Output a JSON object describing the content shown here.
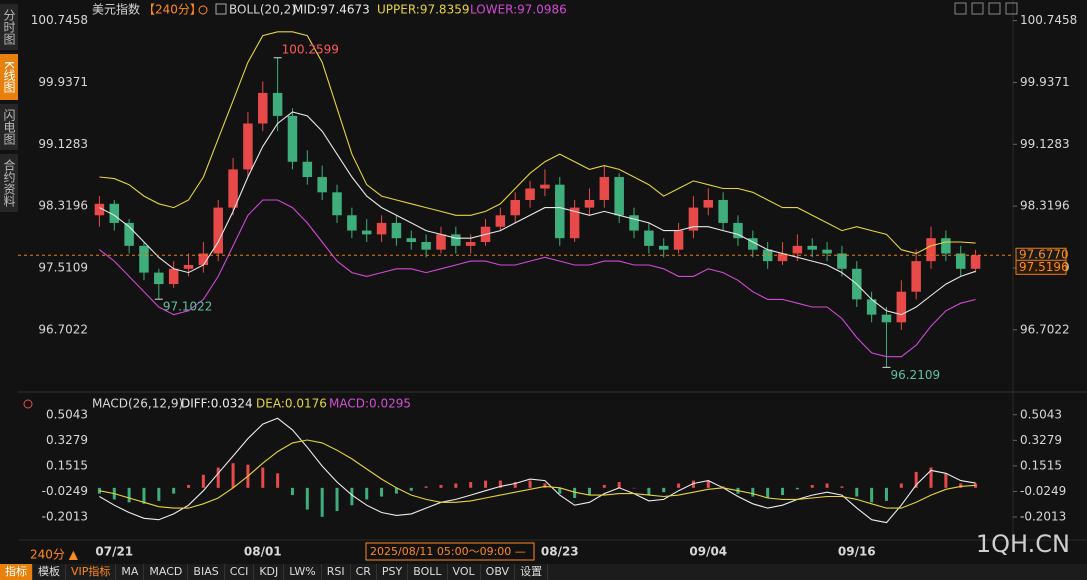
{
  "chart_data": [
    {
      "type": "candlestick",
      "title": "美元指数",
      "period": "【240分】",
      "indicator": "BOLL(20,2)",
      "categories": [
        null,
        "07/21",
        null,
        null,
        null,
        null,
        null,
        null,
        null,
        null,
        null,
        "08/01",
        null,
        null,
        null,
        null,
        null,
        null,
        null,
        null,
        null,
        null,
        null,
        null,
        null,
        null,
        null,
        null,
        null,
        null,
        null,
        "08/23",
        null,
        null,
        null,
        null,
        null,
        null,
        null,
        null,
        null,
        "09/04",
        null,
        null,
        null,
        null,
        null,
        null,
        null,
        null,
        null,
        "09/16",
        null,
        null,
        null,
        null,
        null,
        null,
        null,
        null
      ],
      "open": [
        98.2,
        98.35,
        98.1,
        97.8,
        97.45,
        97.3,
        97.5,
        97.55,
        97.7,
        98.3,
        98.8,
        99.4,
        99.8,
        99.5,
        98.9,
        98.7,
        98.5,
        98.2,
        98.0,
        97.95,
        98.1,
        97.9,
        97.85,
        97.75,
        97.95,
        97.8,
        97.85,
        98.05,
        98.2,
        98.4,
        98.55,
        98.6,
        97.9,
        98.3,
        98.4,
        98.7,
        98.2,
        98.0,
        97.8,
        97.75,
        98.0,
        98.3,
        98.4,
        98.1,
        97.9,
        97.75,
        97.6,
        97.7,
        97.8,
        97.75,
        97.7,
        97.5,
        97.1,
        96.9,
        96.8,
        97.2,
        97.6,
        97.9,
        97.7,
        97.5
      ],
      "high": [
        98.45,
        98.4,
        98.15,
        97.85,
        97.5,
        97.6,
        97.7,
        97.85,
        98.4,
        98.95,
        99.55,
        99.95,
        100.2599,
        99.6,
        99.05,
        98.85,
        98.6,
        98.3,
        98.15,
        98.2,
        98.2,
        98.0,
        97.95,
        98.05,
        98.05,
        97.95,
        98.15,
        98.3,
        98.5,
        98.65,
        98.8,
        98.7,
        98.4,
        98.55,
        98.85,
        98.75,
        98.3,
        98.1,
        97.9,
        98.1,
        98.45,
        98.55,
        98.5,
        98.2,
        98.0,
        97.85,
        97.85,
        97.95,
        97.9,
        97.85,
        97.8,
        97.6,
        97.2,
        97.0,
        97.35,
        97.75,
        98.05,
        98.0,
        97.8,
        97.75
      ],
      "low": [
        98.05,
        98.0,
        97.7,
        97.35,
        97.1022,
        97.25,
        97.4,
        97.45,
        97.6,
        98.2,
        98.7,
        99.3,
        99.3,
        98.8,
        98.6,
        98.4,
        98.1,
        97.9,
        97.85,
        97.85,
        97.8,
        97.75,
        97.65,
        97.7,
        97.7,
        97.7,
        97.8,
        98.0,
        98.1,
        98.3,
        98.45,
        97.8,
        97.85,
        98.2,
        98.3,
        98.1,
        97.9,
        97.7,
        97.65,
        97.7,
        97.9,
        98.2,
        98.0,
        97.8,
        97.65,
        97.5,
        97.55,
        97.6,
        97.65,
        97.6,
        97.4,
        97.0,
        96.8,
        96.2109,
        96.7,
        97.1,
        97.5,
        97.6,
        97.4,
        97.45
      ],
      "close": [
        98.35,
        98.1,
        97.8,
        97.45,
        97.3,
        97.5,
        97.55,
        97.7,
        98.3,
        98.8,
        99.4,
        99.8,
        99.5,
        98.9,
        98.7,
        98.5,
        98.2,
        98.0,
        97.95,
        98.1,
        97.9,
        97.85,
        97.75,
        97.95,
        97.8,
        97.85,
        98.05,
        98.2,
        98.4,
        98.55,
        98.6,
        97.9,
        98.3,
        98.4,
        98.7,
        98.2,
        98.0,
        97.8,
        97.75,
        98.0,
        98.3,
        98.4,
        98.1,
        97.9,
        97.75,
        97.6,
        97.7,
        97.8,
        97.75,
        97.7,
        97.5,
        97.1,
        96.9,
        96.8,
        97.2,
        97.6,
        97.9,
        97.7,
        97.5,
        97.677
      ],
      "up_color": "#e84a4a",
      "down_color": "#3fae7c",
      "series": [
        {
          "name": "MID:97.4673",
          "color": "#e8e8e8",
          "values": [
            98.3,
            98.2,
            98.05,
            97.85,
            97.65,
            97.5,
            97.45,
            97.55,
            97.85,
            98.25,
            98.7,
            99.1,
            99.4,
            99.55,
            99.5,
            99.3,
            99.0,
            98.7,
            98.45,
            98.3,
            98.2,
            98.1,
            98.0,
            97.95,
            97.9,
            97.9,
            97.95,
            98.0,
            98.1,
            98.2,
            98.3,
            98.3,
            98.25,
            98.2,
            98.25,
            98.2,
            98.15,
            98.1,
            98.0,
            98.0,
            98.05,
            98.05,
            98.0,
            97.95,
            97.85,
            97.75,
            97.7,
            97.65,
            97.6,
            97.55,
            97.45,
            97.3,
            97.1,
            96.95,
            96.9,
            97.0,
            97.15,
            97.3,
            97.4,
            97.4673
          ]
        },
        {
          "name": "UPPER:97.8359",
          "color": "#e6d43c",
          "values": [
            98.7,
            98.68,
            98.6,
            98.45,
            98.35,
            98.3,
            98.4,
            98.7,
            99.2,
            99.7,
            100.2,
            100.55,
            100.6,
            100.6,
            100.55,
            100.2,
            99.6,
            99.0,
            98.6,
            98.45,
            98.4,
            98.35,
            98.3,
            98.25,
            98.2,
            98.2,
            98.25,
            98.35,
            98.55,
            98.75,
            98.9,
            99.0,
            98.9,
            98.8,
            98.85,
            98.8,
            98.7,
            98.6,
            98.45,
            98.55,
            98.65,
            98.6,
            98.55,
            98.55,
            98.5,
            98.4,
            98.3,
            98.3,
            98.2,
            98.1,
            98.0,
            98.05,
            98.0,
            97.95,
            97.75,
            97.7,
            97.8,
            97.85,
            97.85,
            97.8359
          ]
        },
        {
          "name": "LOWER:97.0986",
          "color": "#d04ad4",
          "values": [
            97.75,
            97.6,
            97.4,
            97.2,
            97.0,
            96.9,
            96.95,
            97.1,
            97.4,
            97.8,
            98.2,
            98.4,
            98.4,
            98.3,
            98.1,
            97.85,
            97.6,
            97.45,
            97.4,
            97.45,
            97.5,
            97.5,
            97.45,
            97.5,
            97.55,
            97.6,
            97.6,
            97.55,
            97.55,
            97.6,
            97.65,
            97.6,
            97.55,
            97.55,
            97.6,
            97.6,
            97.55,
            97.55,
            97.5,
            97.4,
            97.4,
            97.5,
            97.45,
            97.35,
            97.2,
            97.1,
            97.1,
            97.05,
            97.0,
            97.0,
            96.85,
            96.6,
            96.4,
            96.35,
            96.35,
            96.5,
            96.75,
            96.95,
            97.05,
            97.0986
          ]
        }
      ],
      "ylim": [
        95.98,
        100.95
      ],
      "yticks": [
        {
          "value": 96.7022,
          "label": "96.7022"
        },
        {
          "value": 97.5109,
          "label": "97.5109"
        },
        {
          "value": 98.3196,
          "label": "98.3196"
        },
        {
          "value": 99.1283,
          "label": "99.1283"
        },
        {
          "value": 99.9371,
          "label": "99.9371"
        },
        {
          "value": 100.7458,
          "label": "100.7458"
        }
      ],
      "price_tags": [
        {
          "value": 97.677,
          "label": "97.6770"
        },
        {
          "value": 97.5196,
          "label": "97.5196"
        }
      ],
      "annotations": [
        {
          "value": 100.2599,
          "label": "100.2599",
          "color": "#ff5a5a"
        },
        {
          "value": 97.1022,
          "label": "97.1022",
          "color": "#5fc0a0"
        },
        {
          "value": 96.2109,
          "label": "96.2109",
          "color": "#5fc0a0"
        }
      ]
    },
    {
      "type": "macd",
      "title": "MACD(26,12,9)",
      "series": [
        {
          "name": "DIFF:0.0324",
          "color": "#ececec",
          "values": [
            -0.06,
            -0.12,
            -0.17,
            -0.21,
            -0.22,
            -0.18,
            -0.12,
            -0.02,
            0.1,
            0.22,
            0.34,
            0.44,
            0.48,
            0.4,
            0.28,
            0.15,
            0.04,
            -0.05,
            -0.12,
            -0.17,
            -0.19,
            -0.18,
            -0.14,
            -0.1,
            -0.08,
            -0.05,
            -0.02,
            0.01,
            0.03,
            0.06,
            0.05,
            -0.05,
            -0.12,
            -0.1,
            -0.04,
            0.0,
            -0.04,
            -0.09,
            -0.08,
            -0.02,
            0.03,
            0.05,
            0.0,
            -0.06,
            -0.11,
            -0.14,
            -0.12,
            -0.08,
            -0.05,
            -0.03,
            -0.05,
            -0.14,
            -0.22,
            -0.24,
            -0.12,
            0.02,
            0.12,
            0.1,
            0.05,
            0.0324
          ]
        },
        {
          "name": "DEA:0.0176",
          "color": "#e6d43c",
          "values": [
            -0.02,
            -0.04,
            -0.07,
            -0.1,
            -0.13,
            -0.14,
            -0.14,
            -0.11,
            -0.07,
            0.0,
            0.08,
            0.17,
            0.25,
            0.31,
            0.33,
            0.31,
            0.26,
            0.2,
            0.13,
            0.06,
            0.0,
            -0.05,
            -0.08,
            -0.1,
            -0.1,
            -0.09,
            -0.07,
            -0.05,
            -0.03,
            -0.01,
            0.01,
            0.0,
            -0.03,
            -0.05,
            -0.05,
            -0.04,
            -0.04,
            -0.05,
            -0.06,
            -0.05,
            -0.03,
            -0.01,
            0.0,
            -0.02,
            -0.04,
            -0.07,
            -0.08,
            -0.08,
            -0.07,
            -0.06,
            -0.06,
            -0.08,
            -0.11,
            -0.14,
            -0.14,
            -0.1,
            -0.05,
            -0.01,
            0.01,
            0.0176
          ]
        }
      ],
      "histogram": {
        "name": "MACD:0.0295",
        "color": "#d44fd4",
        "up_color": "#e84a4a",
        "down_color": "#3fae7c",
        "values": [
          -0.04,
          -0.08,
          -0.1,
          -0.11,
          -0.09,
          -0.04,
          0.02,
          0.09,
          0.14,
          0.17,
          0.16,
          0.14,
          0.1,
          -0.05,
          -0.15,
          -0.2,
          -0.16,
          -0.12,
          -0.08,
          -0.06,
          -0.04,
          -0.02,
          0.01,
          0.02,
          0.03,
          0.04,
          0.05,
          0.05,
          0.04,
          0.05,
          0.03,
          -0.04,
          -0.07,
          -0.05,
          0.02,
          0.04,
          0.0,
          -0.05,
          -0.03,
          0.03,
          0.05,
          0.05,
          0.01,
          -0.04,
          -0.06,
          -0.07,
          -0.05,
          -0.01,
          0.02,
          0.03,
          0.01,
          -0.06,
          -0.1,
          -0.09,
          0.03,
          0.11,
          0.14,
          0.1,
          0.03,
          0.0295
        ]
      },
      "ylim": [
        -0.36,
        0.62
      ],
      "yticks": [
        -0.2013,
        -0.0249,
        0.1515,
        0.3279,
        0.5043
      ]
    }
  ],
  "ui": {
    "sidebar": [
      "分时图",
      "K线图",
      "闪电图",
      "合约资料"
    ],
    "period_button": "240分 ▲",
    "crosshair_time": "2025/08/11 05:00～09:00 —",
    "watermark": "1QH.CN",
    "toolbar": [
      "指标",
      "模板",
      "VIP指标",
      "MA",
      "MACD",
      "BIAS",
      "CCI",
      "KDJ",
      "LW%",
      "RSI",
      "CR",
      "PSY",
      "BOLL",
      "VOL",
      "OBV",
      "设置"
    ]
  }
}
